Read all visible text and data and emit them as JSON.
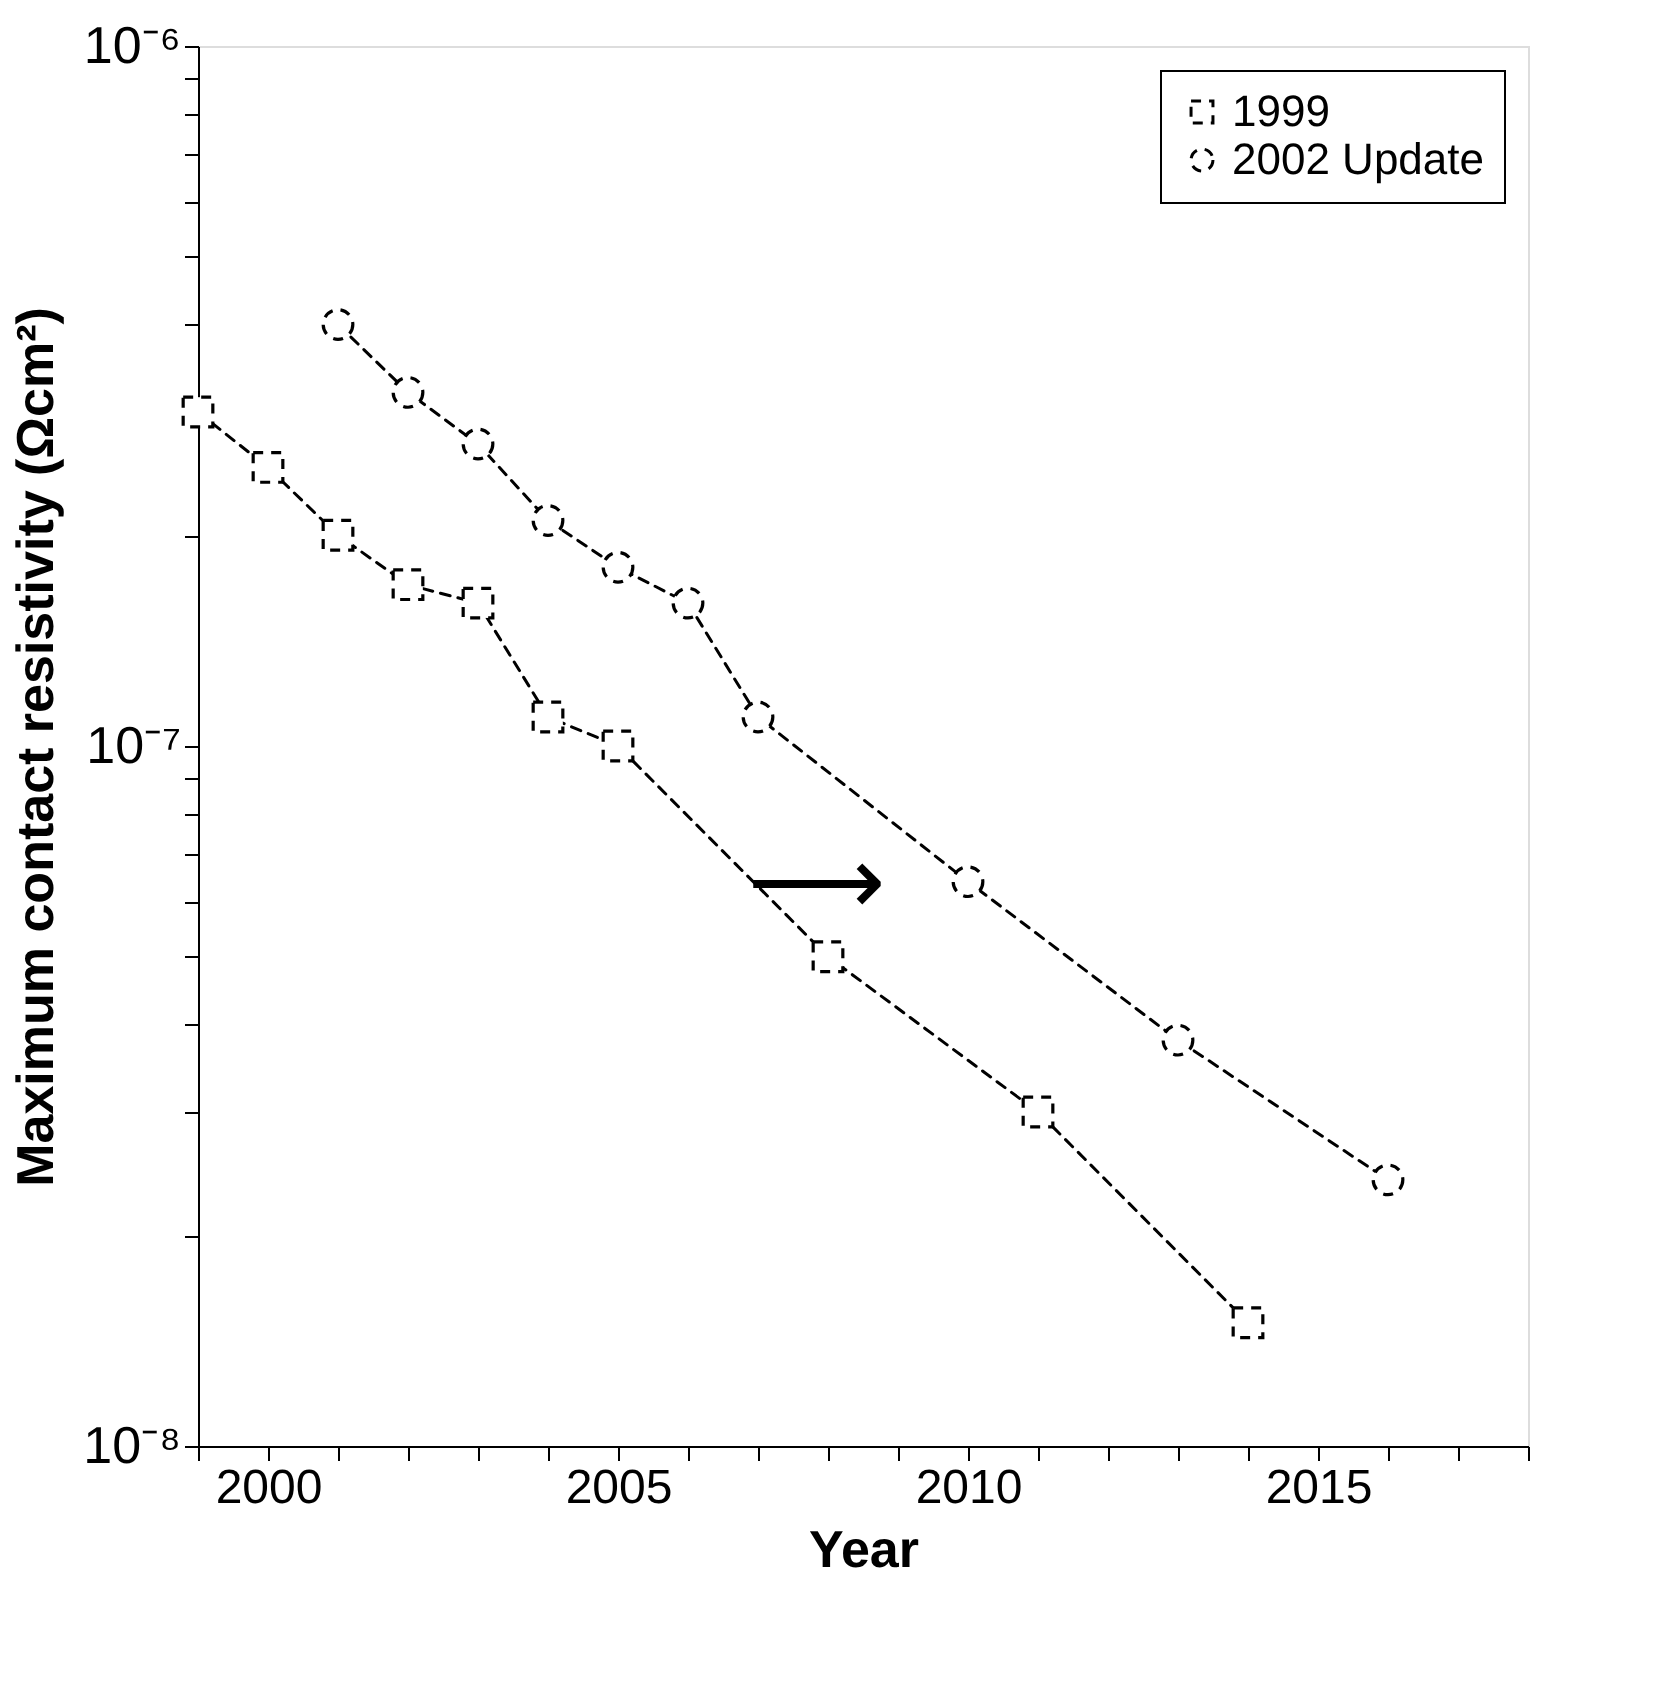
{
  "chart_data": {
    "type": "line",
    "xlabel": "Year",
    "ylabel": "Maximum contact resistivity (Ωcm²)",
    "log": "y",
    "grid": false,
    "legend": "top right",
    "line_style": "dashed",
    "xlim": [
      1999,
      2018
    ],
    "xticks": [
      {
        "value": 1999,
        "label": null
      },
      2000,
      {
        "value": 2001,
        "label": null
      },
      {
        "value": 2002,
        "label": null
      },
      {
        "value": 2003,
        "label": null
      },
      {
        "value": 2004,
        "label": null
      },
      2005,
      {
        "value": 2006,
        "label": null
      },
      {
        "value": 2007,
        "label": null
      },
      {
        "value": 2008,
        "label": null
      },
      {
        "value": 2009,
        "label": null
      },
      2010,
      {
        "value": 2011,
        "label": null
      },
      {
        "value": 2012,
        "label": null
      },
      {
        "value": 2013,
        "label": null
      },
      {
        "value": 2014,
        "label": null
      },
      2015,
      {
        "value": 2016,
        "label": null
      },
      {
        "value": 2017,
        "label": null
      },
      {
        "value": 2018,
        "label": null
      }
    ],
    "ylim": [
      1e-08,
      1e-06
    ],
    "yticks": [
      {
        "value": 1e-08,
        "label": "10⁻⁸"
      },
      {
        "value": 2e-08,
        "label": null
      },
      {
        "value": 3e-08,
        "label": null
      },
      {
        "value": 4e-08,
        "label": null
      },
      {
        "value": 5e-08,
        "label": null
      },
      {
        "value": 6e-08,
        "label": null
      },
      {
        "value": 7e-08,
        "label": null
      },
      {
        "value": 8e-08,
        "label": null
      },
      {
        "value": 9e-08,
        "label": null
      },
      {
        "value": 1e-07,
        "label": "10⁻⁷"
      },
      {
        "value": 2e-07,
        "label": null
      },
      {
        "value": 3e-07,
        "label": null
      },
      {
        "value": 4e-07,
        "label": null
      },
      {
        "value": 5e-07,
        "label": null
      },
      {
        "value": 6e-07,
        "label": null
      },
      {
        "value": 7e-07,
        "label": null
      },
      {
        "value": 8e-07,
        "label": null
      },
      {
        "value": 9e-07,
        "label": null
      },
      {
        "value": 1e-06,
        "label": "10⁻⁶"
      }
    ],
    "series": [
      {
        "name": "1999",
        "color": "#000000",
        "marker": "square",
        "x": [
          1999,
          2000,
          2001,
          2002,
          2003,
          2004,
          2005,
          2008,
          2011,
          2014
        ],
        "values": [
          3e-07,
          2.5e-07,
          2e-07,
          1.7e-07,
          1.6e-07,
          1.1e-07,
          1e-07,
          5e-08,
          3e-08,
          1.5e-08
        ]
      },
      {
        "name": "2002 Update",
        "color": "#000000",
        "marker": "circle",
        "x": [
          2001,
          2002,
          2003,
          2004,
          2005,
          2006,
          2007,
          2010,
          2013,
          2016
        ],
        "values": [
          4e-07,
          3.2e-07,
          2.7e-07,
          2.1e-07,
          1.8e-07,
          1.6e-07,
          1.1e-07,
          6.4e-08,
          3.8e-08,
          2.4e-08
        ]
      }
    ],
    "annotations": [
      "⟶"
    ]
  }
}
